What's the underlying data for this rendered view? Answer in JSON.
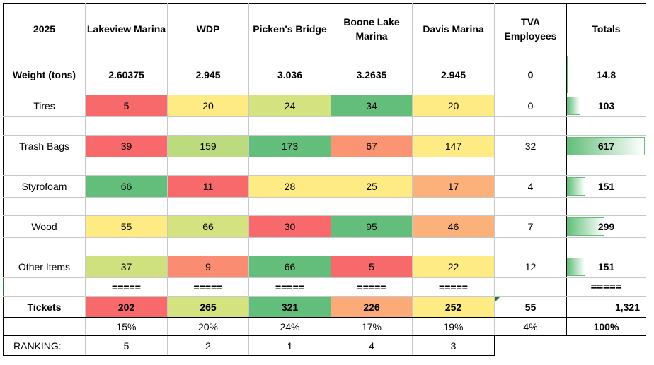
{
  "header": {
    "year": "2025",
    "columns": [
      "Lakeview Marina",
      "WDP",
      "Picken's Bridge",
      "Boone Lake Marina",
      "Davis Marina",
      "TVA Employees"
    ],
    "totals": "Totals"
  },
  "weight": {
    "label": "Weight (tons)",
    "values": [
      "2.60375",
      "2.945",
      "3.036",
      "3.2635",
      "2.945",
      "0"
    ],
    "total": "14.8"
  },
  "rows": [
    {
      "label": "Tires",
      "values": [
        "5",
        "20",
        "24",
        "34",
        "20",
        "0"
      ],
      "total": "103",
      "total_fraction": 0.17
    },
    {
      "label": "Trash Bags",
      "values": [
        "39",
        "159",
        "173",
        "67",
        "147",
        "32"
      ],
      "total": "617",
      "total_fraction": 1.0
    },
    {
      "label": "Styrofoam",
      "values": [
        "66",
        "11",
        "28",
        "25",
        "17",
        "4"
      ],
      "total": "151",
      "total_fraction": 0.24
    },
    {
      "label": "Wood",
      "values": [
        "55",
        "66",
        "30",
        "95",
        "46",
        "7"
      ],
      "total": "299",
      "total_fraction": 0.48
    },
    {
      "label": "Other Items",
      "values": [
        "37",
        "9",
        "66",
        "5",
        "22",
        "12"
      ],
      "total": "151",
      "total_fraction": 0.24
    }
  ],
  "separator": "=====",
  "tickets": {
    "label": "Tickets",
    "values": [
      "202",
      "265",
      "321",
      "226",
      "252",
      "55"
    ],
    "total": "1,321"
  },
  "percents": {
    "values": [
      "15%",
      "20%",
      "24%",
      "17%",
      "19%",
      "4%"
    ],
    "total": "100%"
  },
  "ranking": {
    "label": "RANKING:",
    "values": [
      "5",
      "2",
      "1",
      "4",
      "3"
    ]
  },
  "colors": {
    "red": "#f8696b",
    "orange": "#fa9473",
    "lightorange": "#fcb87c",
    "yellow": "#ffeb84",
    "yellowgreen": "#cfe17f",
    "lightgreen": "#b4d87e",
    "green": "#63be7b",
    "databar": "#63be7b"
  },
  "cell_colors": {
    "rows": [
      [
        "#f8696b",
        "#ffeb84",
        "#d4e27f",
        "#63be7b",
        "#ffeb84"
      ],
      [
        "#f8696b",
        "#bcda7e",
        "#63be7b",
        "#fa9473",
        "#ffeb84"
      ],
      [
        "#63be7b",
        "#f8696b",
        "#ffeb84",
        "#ffeb84",
        "#fcb17a"
      ],
      [
        "#ffeb84",
        "#d4e27f",
        "#f8696b",
        "#63be7b",
        "#fcb17a"
      ],
      [
        "#cfe17f",
        "#fa8c72",
        "#63be7b",
        "#f8696b",
        "#ffeb84"
      ]
    ],
    "tickets": [
      "#f8696b",
      "#d4e27f",
      "#63be7b",
      "#fcaa78",
      "#ffeb84"
    ]
  }
}
